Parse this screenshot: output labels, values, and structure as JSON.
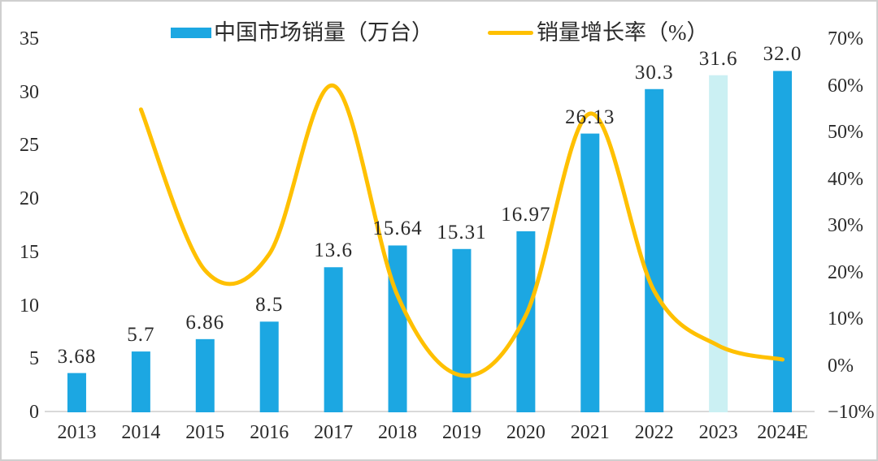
{
  "chart_data": {
    "type": "combo",
    "title": "",
    "categories": [
      "2013",
      "2014",
      "2015",
      "2016",
      "2017",
      "2018",
      "2019",
      "2020",
      "2021",
      "2022",
      "2023",
      "2024E"
    ],
    "series": [
      {
        "name": "中国市场销量（万台）",
        "type": "bar",
        "axis": "left",
        "color": "#1CA7E2",
        "highlight_index": 10,
        "highlight_color": "#CBF0F3",
        "values": [
          3.68,
          5.7,
          6.86,
          8.5,
          13.6,
          15.64,
          15.31,
          16.97,
          26.13,
          30.3,
          31.6,
          32.0
        ],
        "labels": [
          "3.68",
          "5.7",
          "6.86",
          "8.5",
          "13.6",
          "15.64",
          "15.31",
          "16.97",
          "26.13",
          "30.3",
          "31.6",
          "32.0"
        ]
      },
      {
        "name": "销量增长率（%）",
        "type": "line",
        "axis": "right",
        "color": "#FFC000",
        "values": [
          null,
          54.9,
          20.4,
          23.9,
          60.0,
          15.0,
          -2.1,
          10.8,
          54.0,
          16.0,
          4.3,
          1.3
        ]
      }
    ],
    "left_axis": {
      "min": 0,
      "max": 35,
      "step": 5,
      "tick_values": [
        35,
        30,
        25,
        20,
        15,
        10,
        5,
        0
      ],
      "tick_labels": [
        "35",
        "30",
        "25",
        "20",
        "15",
        "10",
        "5",
        "0"
      ]
    },
    "right_axis": {
      "min": -10,
      "max": 70,
      "step": 10,
      "tick_values": [
        70,
        60,
        50,
        40,
        30,
        20,
        10,
        0,
        -10
      ],
      "tick_labels": [
        "70%",
        "60%",
        "50%",
        "40%",
        "30%",
        "20%",
        "10%",
        "0%",
        "−10%"
      ]
    },
    "legend_position": "top",
    "grid": false,
    "line_smooth": true
  },
  "colors": {
    "bar": "#1CA7E2",
    "bar_highlight": "#CBF0F3",
    "line": "#FFC000",
    "axis_line": "#D9D9D9",
    "text": "#2B2B2B",
    "border": "#CFCFCF"
  }
}
